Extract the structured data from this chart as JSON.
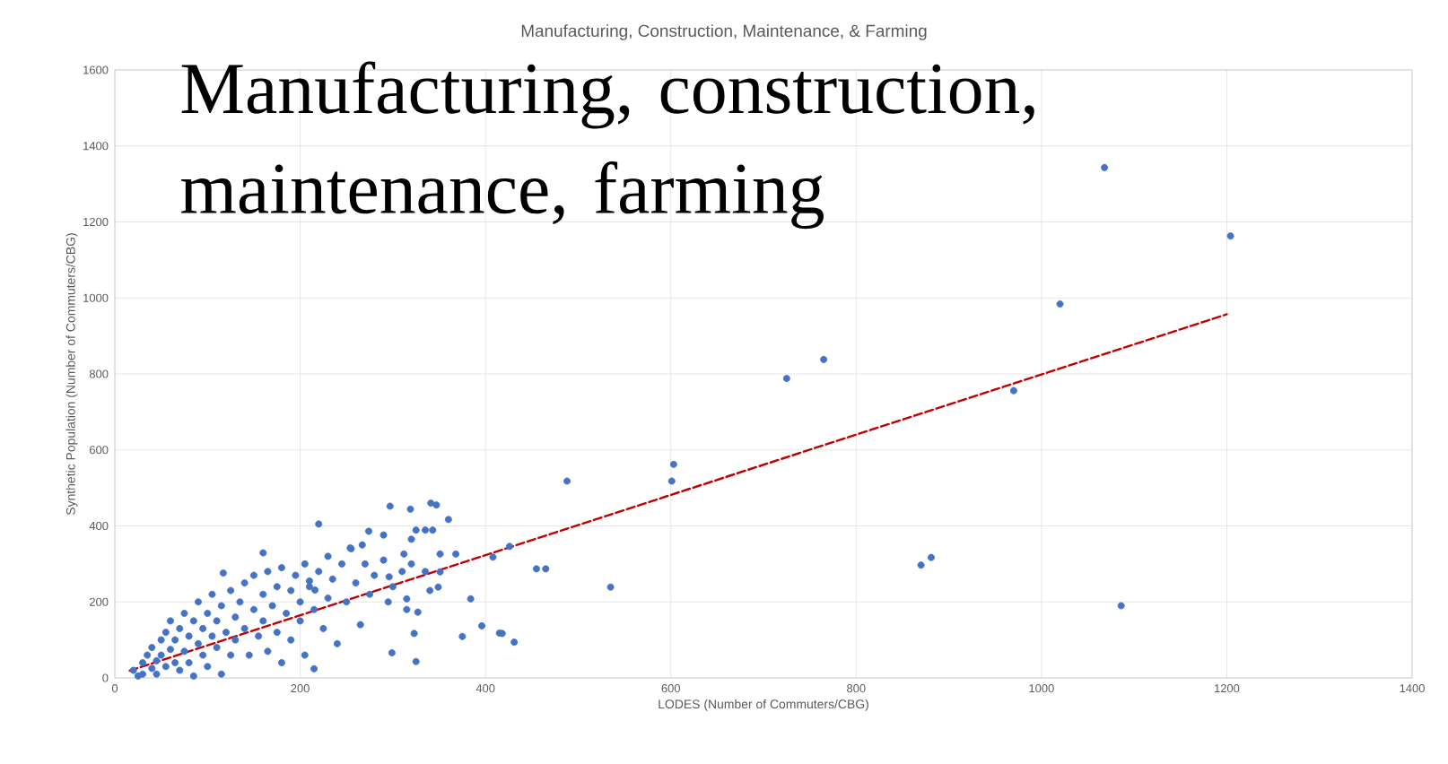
{
  "chart_data": {
    "type": "scatter",
    "title": "Manufacturing, Construction, Maintenance, & Farming",
    "subtitle": "Manufacturing, construction, maintenance, farming",
    "xlabel": "LODES (Number of Commuters/CBG)",
    "ylabel": "Synthetic Population (Number of Commuters/CBG)",
    "xlim": [
      0,
      1400
    ],
    "ylim": [
      0,
      1600
    ],
    "xticks": [
      0,
      200,
      400,
      600,
      800,
      1000,
      1200,
      1400
    ],
    "yticks": [
      0,
      200,
      400,
      600,
      800,
      1000,
      1200,
      1400,
      1600
    ],
    "grid": true,
    "series": [
      {
        "color": "#4472c4",
        "marker": "circle",
        "x": [
          20,
          25,
          30,
          30,
          35,
          40,
          40,
          45,
          45,
          50,
          50,
          55,
          55,
          60,
          60,
          65,
          65,
          70,
          70,
          75,
          75,
          80,
          80,
          85,
          85,
          90,
          90,
          95,
          95,
          100,
          100,
          105,
          105,
          110,
          110,
          115,
          115,
          120,
          125,
          125,
          130,
          130,
          135,
          140,
          140,
          145,
          150,
          150,
          155,
          160,
          160,
          165,
          165,
          170,
          175,
          175,
          180,
          180,
          185,
          190,
          190,
          195,
          200,
          200,
          205,
          205,
          210,
          215,
          220,
          225,
          230,
          230,
          235,
          240,
          245,
          250,
          255,
          260,
          265,
          270,
          275,
          280,
          290,
          295,
          300,
          310,
          315,
          320,
          335,
          340,
          488,
          603,
          601,
          535,
          455,
          465,
          426,
          408,
          431,
          415,
          418,
          396,
          375,
          384,
          368,
          360,
          351,
          351,
          349,
          347,
          341,
          343,
          335,
          325,
          320,
          319,
          297,
          325,
          323,
          327,
          312,
          296,
          290,
          274,
          315,
          299,
          220,
          215,
          160,
          117,
          210,
          254,
          267,
          216,
          1068,
          1204,
          1020,
          970,
          765,
          725,
          870,
          881,
          1086
        ],
        "values": [
          20,
          5,
          40,
          10,
          60,
          25,
          80,
          45,
          10,
          100,
          60,
          30,
          120,
          75,
          150,
          40,
          100,
          20,
          130,
          70,
          170,
          110,
          40,
          150,
          5,
          90,
          200,
          130,
          60,
          170,
          30,
          110,
          220,
          80,
          150,
          190,
          10,
          120,
          230,
          60,
          160,
          100,
          200,
          130,
          250,
          60,
          180,
          270,
          110,
          220,
          150,
          280,
          70,
          190,
          240,
          120,
          290,
          40,
          170,
          230,
          100,
          270,
          200,
          150,
          300,
          60,
          240,
          180,
          280,
          130,
          320,
          210,
          260,
          90,
          300,
          200,
          340,
          250,
          140,
          300,
          220,
          270,
          310,
          200,
          240,
          280,
          180,
          300,
          280,
          230,
          518,
          562,
          518,
          239,
          287,
          287,
          346,
          318,
          94,
          118,
          117,
          137,
          109,
          208,
          326,
          417,
          326,
          279,
          239,
          455,
          460,
          389,
          389,
          389,
          365,
          444,
          452,
          43,
          117,
          173,
          326,
          266,
          376,
          386,
          208,
          66,
          405,
          24,
          329,
          276,
          255,
          342,
          350,
          231,
          1343,
          1163,
          984,
          756,
          838,
          788,
          297,
          317,
          190
        ]
      },
      {
        "type": "line",
        "color": "#c00000",
        "line_style": "dashed",
        "marker": "none",
        "x": [
          16,
          1200
        ],
        "values": [
          19,
          957
        ]
      }
    ]
  }
}
